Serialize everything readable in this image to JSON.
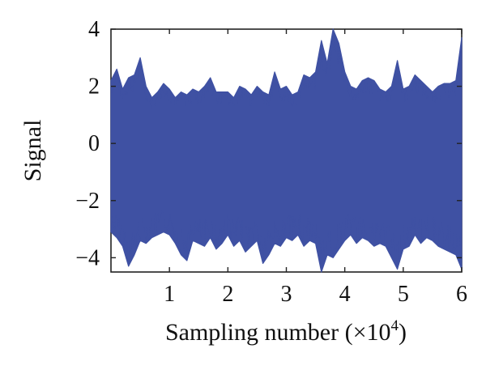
{
  "chart_data": {
    "type": "line",
    "xlabel": "Sampling number (×10",
    "xlabel_exponent": "4",
    "xlabel_suffix": ")",
    "ylabel": "Signal",
    "xlim": [
      0,
      6
    ],
    "ylim": [
      -4.5,
      4
    ],
    "x_ticks": [
      1,
      2,
      3,
      4,
      5,
      6
    ],
    "x_tick_labels": [
      "1",
      "2",
      "3",
      "4",
      "5",
      "6"
    ],
    "y_ticks": [
      4,
      2,
      0,
      -2,
      -4
    ],
    "y_tick_labels": [
      "4",
      "2",
      "0",
      "−2",
      "−4"
    ],
    "grid": false,
    "legend": "none",
    "series": [
      {
        "color": "#3f51a3",
        "x": [
          0.0,
          0.1,
          0.2,
          0.3,
          0.4,
          0.5,
          0.6,
          0.7,
          0.8,
          0.9,
          1.0,
          1.1,
          1.2,
          1.3,
          1.4,
          1.5,
          1.6,
          1.7,
          1.8,
          1.9,
          2.0,
          2.1,
          2.2,
          2.3,
          2.4,
          2.5,
          2.6,
          2.7,
          2.8,
          2.9,
          3.0,
          3.1,
          3.2,
          3.3,
          3.4,
          3.5,
          3.6,
          3.7,
          3.8,
          3.9,
          4.0,
          4.1,
          4.2,
          4.3,
          4.4,
          4.5,
          4.6,
          4.7,
          4.8,
          4.9,
          5.0,
          5.1,
          5.2,
          5.3,
          5.4,
          5.5,
          5.6,
          5.7,
          5.8,
          5.9,
          6.0
        ],
        "upper": [
          2.2,
          2.6,
          1.9,
          2.3,
          2.4,
          3.0,
          2.0,
          1.6,
          1.8,
          2.1,
          1.9,
          1.6,
          1.8,
          1.7,
          1.9,
          1.8,
          2.0,
          2.3,
          1.8,
          1.8,
          1.8,
          1.6,
          2.0,
          1.9,
          1.7,
          2.0,
          1.8,
          1.7,
          2.5,
          1.9,
          2.0,
          1.7,
          1.8,
          2.4,
          2.3,
          2.5,
          3.6,
          2.8,
          4.0,
          3.5,
          2.5,
          2.0,
          1.9,
          2.2,
          2.3,
          2.2,
          1.9,
          1.8,
          2.0,
          2.9,
          1.9,
          2.0,
          2.4,
          2.2,
          2.0,
          1.8,
          2.0,
          2.1,
          2.1,
          2.2,
          3.7
        ],
        "lower": [
          -3.1,
          -3.3,
          -3.6,
          -4.3,
          -3.9,
          -3.4,
          -3.5,
          -3.3,
          -3.2,
          -3.1,
          -3.2,
          -3.5,
          -3.9,
          -4.1,
          -3.4,
          -3.5,
          -3.6,
          -3.3,
          -3.7,
          -3.5,
          -3.2,
          -3.6,
          -3.4,
          -3.8,
          -3.6,
          -3.4,
          -4.2,
          -3.9,
          -3.5,
          -3.6,
          -3.3,
          -3.4,
          -3.2,
          -3.6,
          -3.4,
          -3.5,
          -4.5,
          -3.9,
          -4.0,
          -3.7,
          -3.4,
          -3.2,
          -3.5,
          -3.3,
          -3.4,
          -3.6,
          -3.5,
          -3.6,
          -4.0,
          -4.4,
          -3.7,
          -3.6,
          -3.2,
          -3.5,
          -3.3,
          -3.4,
          -3.6,
          -3.7,
          -3.8,
          -3.9,
          -4.4
        ]
      }
    ]
  }
}
